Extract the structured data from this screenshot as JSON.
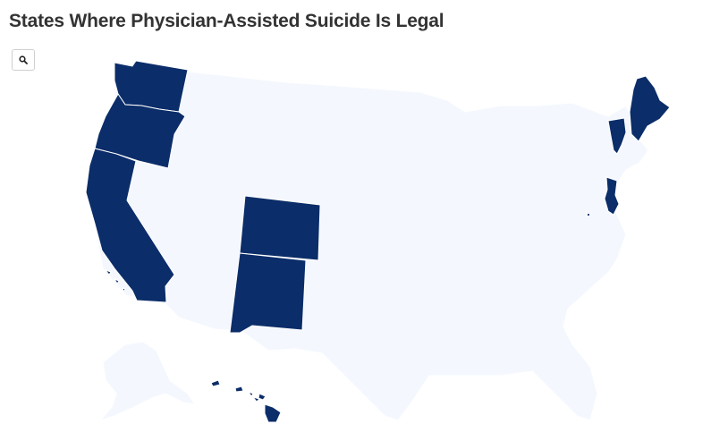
{
  "title": "States Where Physician-Assisted Suicide Is Legal",
  "zoom_icon": "search-icon",
  "colors": {
    "legal": "#0b2d69",
    "not_legal": "#f4f8fe",
    "title": "#333333"
  },
  "legal_states": [
    "Washington",
    "Oregon",
    "California",
    "Colorado",
    "New Mexico",
    "Vermont",
    "Maine",
    "New Jersey",
    "Hawaii",
    "District of Columbia"
  ]
}
